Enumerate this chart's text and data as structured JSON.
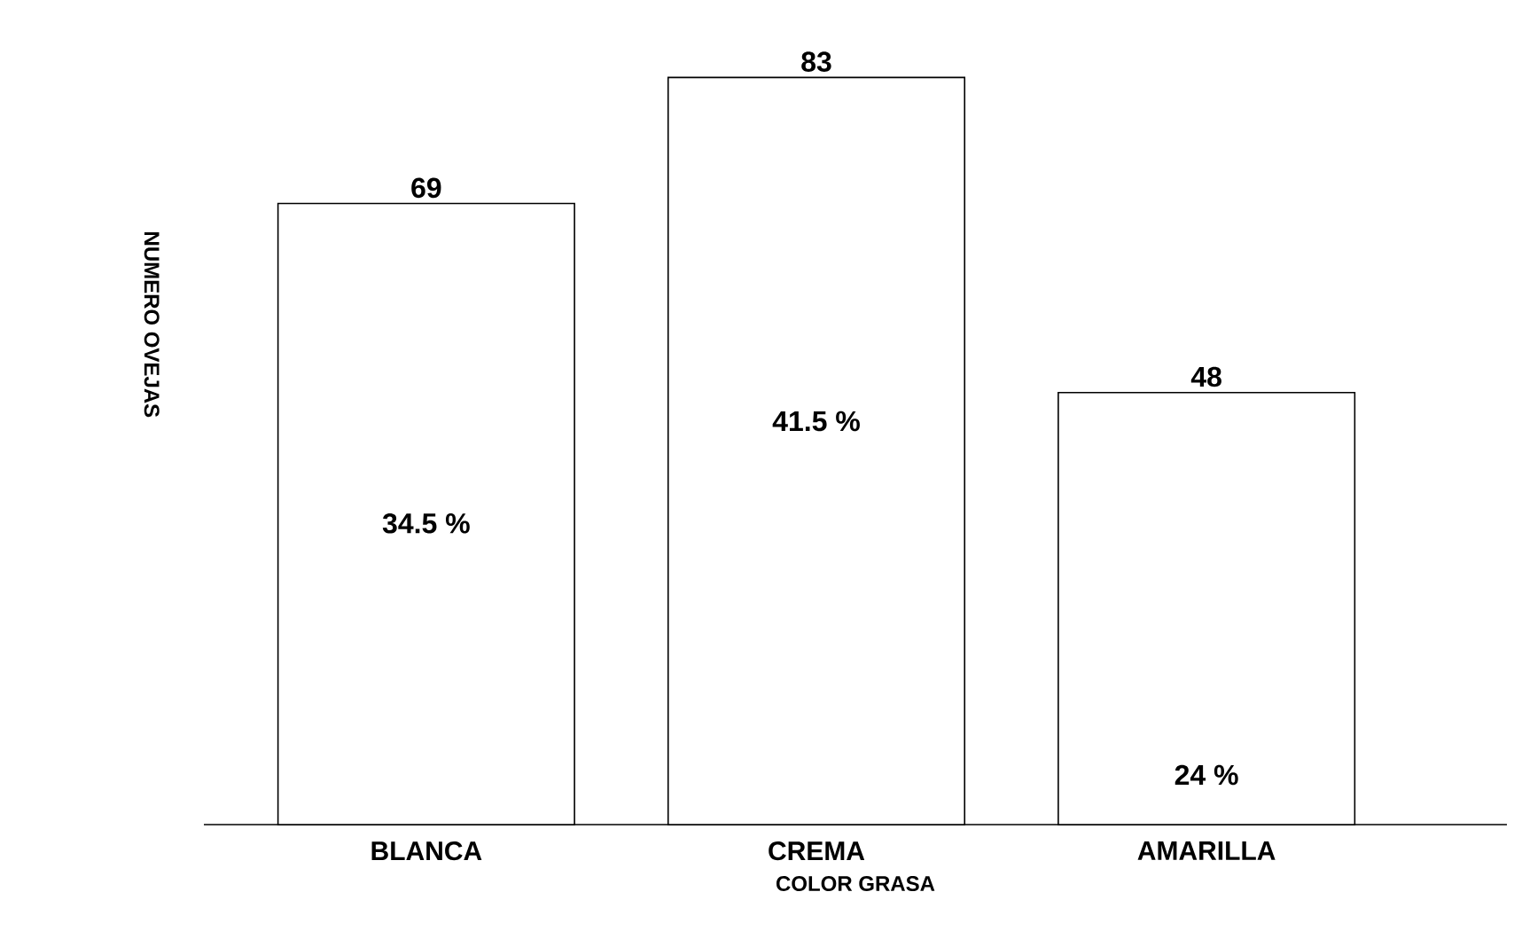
{
  "chart_data": {
    "type": "bar",
    "xlabel": "COLOR GRASA",
    "ylabel": "NUMERO OVEJAS",
    "categories": [
      "BLANCA",
      "CREMA",
      "AMARILLA"
    ],
    "values": [
      69,
      83,
      48
    ],
    "color": "#ffffff",
    "data_labels": true,
    "annotations": [
      "34.5 %",
      "41.5 %",
      "24 %"
    ]
  }
}
